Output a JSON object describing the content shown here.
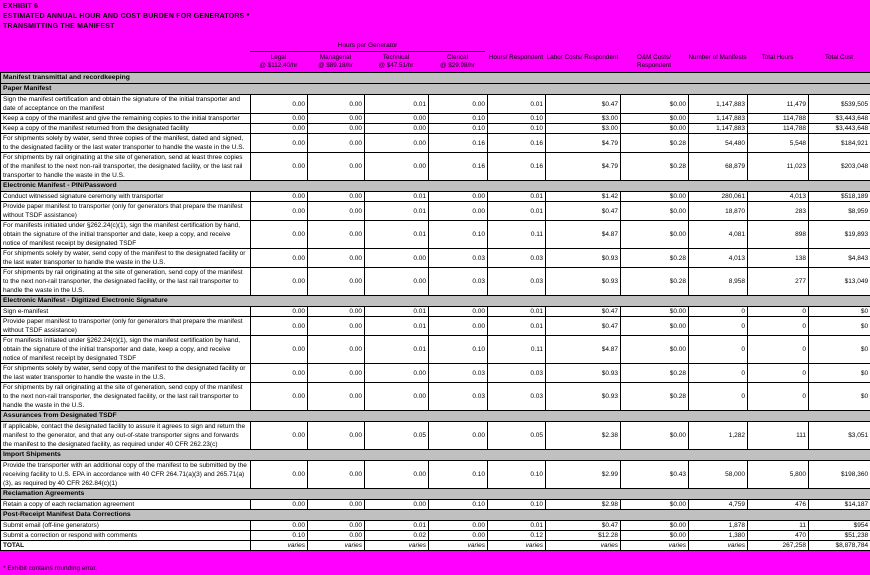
{
  "title": {
    "line1": "EXHIBIT 6",
    "line2": "ESTIMATED ANNUAL HOUR AND COST BURDEN FOR GENERATORS *",
    "line3": "TRANSMITTING THE MANIFEST"
  },
  "colors": {
    "background": "#FF00FF",
    "band_fill": "#C0C0C0",
    "cell_fill": "#FFFFFF",
    "border": "#000000",
    "text": "#000000"
  },
  "header": {
    "group_label": "Hours per Generator",
    "wage_columns": [
      {
        "label": "Legal",
        "rate": "@ $112.40/hr"
      },
      {
        "label": "Managerial",
        "rate": "@ $89.18/hr"
      },
      {
        "label": "Technical",
        "rate": "@ $47.51/hr"
      },
      {
        "label": "Clerical",
        "rate": "@ $29.98/hr"
      }
    ],
    "other_columns": [
      "Hours/ Respondent",
      "Labor Costs/ Respondent",
      "O&M Costs/ Respondent",
      "Number of Manifests",
      "Total Hours",
      "Total Cost"
    ]
  },
  "table": {
    "top_band": "Manifest transmittal and recordkeeping",
    "sections": [
      {
        "name": "Paper Manifest",
        "rows": [
          {
            "label": "Sign the manifest certification and obtain the signature of the initial transporter and date of acceptance on the manifest",
            "values": [
              "0.00",
              "0.00",
              "0.01",
              "0.00",
              "0.01",
              "$0.47",
              "$0.00",
              "1,147,883",
              "11,479",
              "$539,505"
            ]
          },
          {
            "label": "Keep a copy of the manifest and give the remaining copies to the initial transporter",
            "values": [
              "0.00",
              "0.00",
              "0.00",
              "0.10",
              "0.10",
              "$3.00",
              "$0.00",
              "1,147,883",
              "114,788",
              "$3,443,648"
            ]
          },
          {
            "label": "Keep a copy of the manifest returned from the designated facility",
            "values": [
              "0.00",
              "0.00",
              "0.00",
              "0.10",
              "0.10",
              "$3.00",
              "$0.00",
              "1,147,883",
              "114,788",
              "$3,443,648"
            ]
          },
          {
            "label": "For shipments solely by water, send three copies of the manifest, dated and signed, to the designated facility or the last water transporter to handle the waste in the U.S.",
            "values": [
              "0.00",
              "0.00",
              "0.00",
              "0.16",
              "0.16",
              "$4.79",
              "$0.28",
              "54,480",
              "5,548",
              "$184,921"
            ]
          },
          {
            "label": "For shipments by rail originating at the site of generation, send at least three copies of the manifest to the next non-rail transporter, the designated facility, or the last rail transporter to handle the waste in the U.S.",
            "values": [
              "0.00",
              "0.00",
              "0.00",
              "0.16",
              "0.16",
              "$4.79",
              "$0.28",
              "68,879",
              "11,023",
              "$203,048"
            ]
          }
        ]
      },
      {
        "name": "Electronic Manifest - PIN/Password",
        "rows": [
          {
            "label": "Conduct witnessed signature ceremony with transporter",
            "values": [
              "0.00",
              "0.00",
              "0.01",
              "0.00",
              "0.01",
              "$1.42",
              "$0.00",
              "280,061",
              "4,013",
              "$518,189"
            ]
          },
          {
            "label": "Provide paper manifest to transporter (only for generators that prepare the manifest without TSDF assistance)",
            "values": [
              "0.00",
              "0.00",
              "0.01",
              "0.00",
              "0.01",
              "$0.47",
              "$0.00",
              "18,870",
              "283",
              "$8,959"
            ]
          },
          {
            "label": "For manifests initiated under §262.24(c)(1), sign the manifest certification by hand, obtain the signature of the initial transporter and date, keep a copy, and receive notice of manifest receipt by designated TSDF",
            "values": [
              "0.00",
              "0.00",
              "0.01",
              "0.10",
              "0.11",
              "$4.87",
              "$0.00",
              "4,081",
              "898",
              "$19,893"
            ]
          },
          {
            "label": "For shipments solely by water, send copy of the manifest to the designated facility or the last water transporter to handle the waste in the U.S.",
            "values": [
              "0.00",
              "0.00",
              "0.00",
              "0.03",
              "0.03",
              "$0.93",
              "$0.28",
              "4,013",
              "138",
              "$4,843"
            ]
          },
          {
            "label": "For shipments by rail originating at the site of generation, send copy of the manifest to the next non-rail transporter, the designated facility, or the last rail transporter to handle the waste in the U.S.",
            "values": [
              "0.00",
              "0.00",
              "0.00",
              "0.03",
              "0.03",
              "$0.93",
              "$0.28",
              "8,958",
              "277",
              "$13,049"
            ]
          }
        ]
      },
      {
        "name": "Electronic Manifest - Digitized Electronic Signature",
        "rows": [
          {
            "label": "Sign e-manifest",
            "values": [
              "0.00",
              "0.00",
              "0.01",
              "0.00",
              "0.01",
              "$0.47",
              "$0.00",
              "0",
              "0",
              "$0"
            ]
          },
          {
            "label": "Provide paper manifest to transporter (only for generators that prepare the manifest without TSDF assistance)",
            "values": [
              "0.00",
              "0.00",
              "0.01",
              "0.00",
              "0.01",
              "$0.47",
              "$0.00",
              "0",
              "0",
              "$0"
            ]
          },
          {
            "label": "For manifests initiated under §262.24(c)(1), sign the manifest certification by hand, obtain the signature of the initial transporter and date, keep a copy, and receive notice of manifest receipt by designated TSDF",
            "values": [
              "0.00",
              "0.00",
              "0.01",
              "0.10",
              "0.11",
              "$4.87",
              "$0.00",
              "0",
              "0",
              "$0"
            ]
          },
          {
            "label": "For shipments solely by water, send copy of the manifest to the designated facility or the last water transporter to handle the waste in the U.S.",
            "values": [
              "0.00",
              "0.00",
              "0.00",
              "0.03",
              "0.03",
              "$0.93",
              "$0.28",
              "0",
              "0",
              "$0"
            ]
          },
          {
            "label": "For shipments by rail originating at the site of generation, send copy of the manifest to the next non-rail transporter, the designated facility, or the last rail transporter to handle the waste in the U.S.",
            "values": [
              "0.00",
              "0.00",
              "0.00",
              "0.03",
              "0.03",
              "$0.93",
              "$0.28",
              "0",
              "0",
              "$0"
            ]
          }
        ]
      },
      {
        "name": "Assurances from Designated TSDF",
        "rows": [
          {
            "label": "If applicable, contact the designated facility to assure it agrees to sign and return the manifest to the generator, and that any out-of-state transporter signs and forwards the manifest to the designated facility, as required under 40 CFR 262.23(c)",
            "values": [
              "0.00",
              "0.00",
              "0.05",
              "0.00",
              "0.05",
              "$2.38",
              "$0.00",
              "1,282",
              "111",
              "$3,051"
            ]
          }
        ]
      },
      {
        "name": "Import Shipments",
        "rows": [
          {
            "label": "Provide the transporter with an additional copy of the manifest to be submitted by the receiving facility to U.S. EPA in accordance with 40 CFR 264.71(a)(3) and 265.71(a)(3), as required by 40 CFR 262.84(c)(1)",
            "values": [
              "0.00",
              "0.00",
              "0.00",
              "0.10",
              "0.10",
              "$2.99",
              "$0.43",
              "58,000",
              "5,800",
              "$198,360"
            ]
          }
        ]
      },
      {
        "name": "Reclamation Agreements",
        "rows": [
          {
            "label": "Retain a copy of each reclamation agreement",
            "values": [
              "0.00",
              "0.00",
              "0.00",
              "0.10",
              "0.10",
              "$2.98",
              "$0.00",
              "4,759",
              "476",
              "$14,187"
            ]
          }
        ]
      },
      {
        "name": "Post-Receipt Manifest Data Corrections",
        "rows": [
          {
            "label": "Submit email (off-line generators)",
            "values": [
              "0.00",
              "0.00",
              "0.01",
              "0.00",
              "0.01",
              "$0.47",
              "$0.00",
              "1,878",
              "11",
              "$954"
            ]
          },
          {
            "label": "Submit a correction or respond with comments",
            "values": [
              "0.10",
              "0.00",
              "0.02",
              "0.00",
              "0.12",
              "$12.28",
              "$0.00",
              "1,380",
              "470",
              "$51,238"
            ]
          }
        ]
      }
    ],
    "total_row": {
      "label": "TOTAL",
      "values": [
        "varies",
        "varies",
        "varies",
        "varies",
        "varies",
        "varies",
        "varies",
        "varies",
        "267,258",
        "$8,878,784"
      ]
    }
  },
  "footnote": "* Exhibit contains rounding error."
}
